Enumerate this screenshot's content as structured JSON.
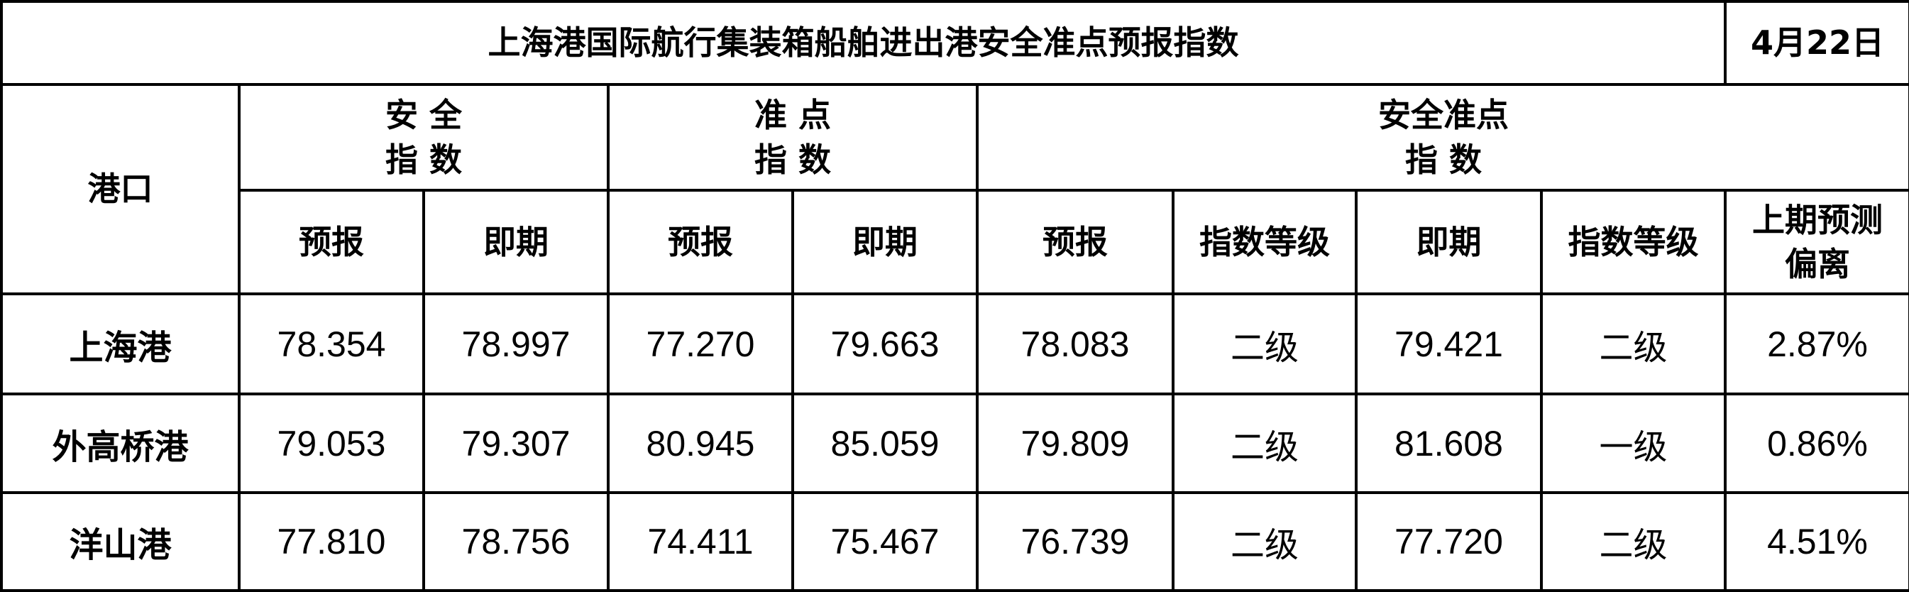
{
  "title": "上海港国际航行集装箱船舶进出港安全准点预报指数",
  "date": "4月22日",
  "headers": {
    "port": "港口",
    "safety_line1": "安 全",
    "safety_line2": "指 数",
    "punctual_line1": "准 点",
    "punctual_line2": "指 数",
    "combined_line1": "安全准点",
    "combined_line2": "指 数",
    "forecast": "预报",
    "current": "即期",
    "grade": "指数等级",
    "deviation_line1": "上期预测",
    "deviation_line2": "偏离"
  },
  "rows": [
    {
      "port": "上海港",
      "safety_forecast": "78.354",
      "safety_current": "78.997",
      "punctual_forecast": "77.270",
      "punctual_current": "79.663",
      "combined_forecast": "78.083",
      "forecast_grade": "二级",
      "combined_current": "79.421",
      "current_grade": "二级",
      "deviation": "2.87%"
    },
    {
      "port": "外高桥港",
      "safety_forecast": "79.053",
      "safety_current": "79.307",
      "punctual_forecast": "80.945",
      "punctual_current": "85.059",
      "combined_forecast": "79.809",
      "forecast_grade": "二级",
      "combined_current": "81.608",
      "current_grade": "一级",
      "deviation": "0.86%"
    },
    {
      "port": "洋山港",
      "safety_forecast": "77.810",
      "safety_current": "78.756",
      "punctual_forecast": "74.411",
      "punctual_current": "75.467",
      "combined_forecast": "76.739",
      "forecast_grade": "二级",
      "combined_current": "77.720",
      "current_grade": "二级",
      "deviation": "4.51%"
    }
  ]
}
